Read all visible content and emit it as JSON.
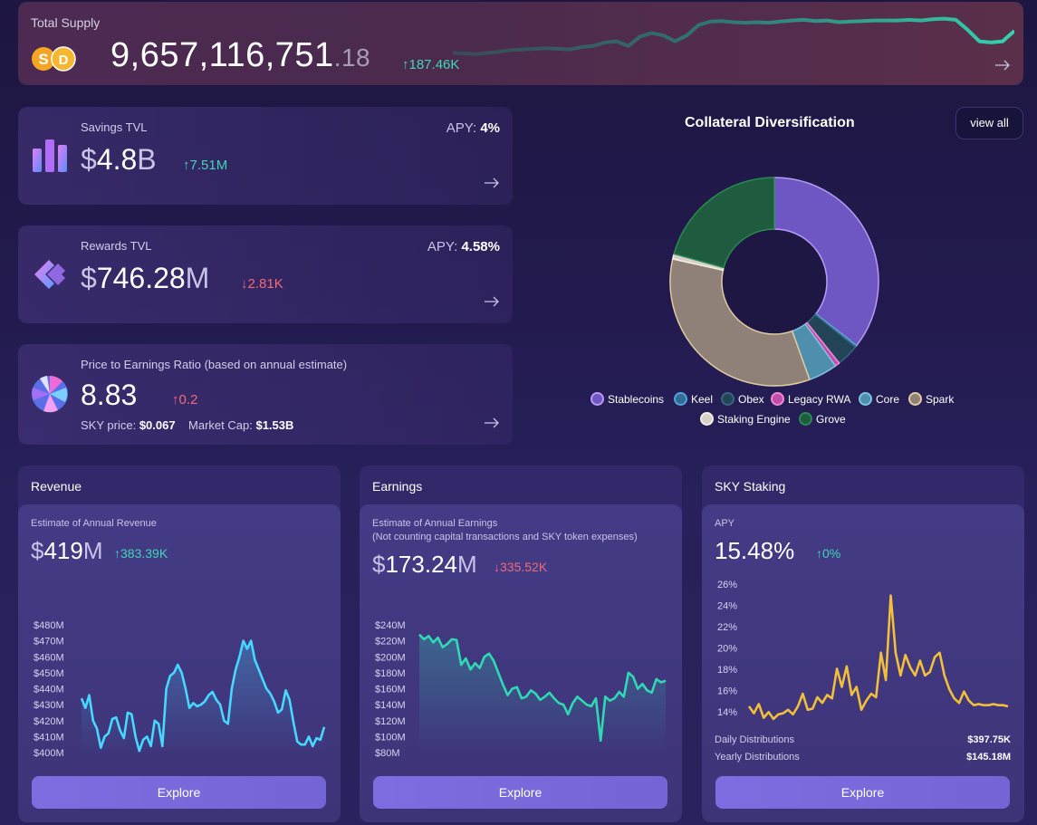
{
  "total_supply": {
    "label": "Total Supply",
    "value_main": "9,657,116,751",
    "value_decimal": ".18",
    "change": "↑187.46K",
    "trend": [
      0.4,
      0.39,
      0.38,
      0.4,
      0.42,
      0.45,
      0.46,
      0.47,
      0.48,
      0.47,
      0.46,
      0.5,
      0.52,
      0.58,
      0.6,
      0.52,
      0.68,
      0.74,
      0.7,
      0.6,
      0.7,
      0.88,
      0.94,
      0.95,
      0.93,
      0.92,
      0.93,
      0.92,
      0.94,
      0.96,
      0.97,
      0.95,
      0.96,
      0.93,
      0.94,
      0.95,
      0.96,
      0.96,
      0.96,
      0.97,
      0.96,
      0.98,
      0.99,
      0.97,
      0.8,
      0.6,
      0.58,
      0.6,
      0.78
    ]
  },
  "savings": {
    "title": "Savings TVL",
    "apy_label": "APY:",
    "apy_value": "4%",
    "currency": "$",
    "value": "4.8",
    "unit": "B",
    "change": "↑7.51M"
  },
  "rewards": {
    "title": "Rewards TVL",
    "apy_label": "APY:",
    "apy_value": "4.58%",
    "currency": "$",
    "value": "746.28",
    "unit": "M",
    "change": "↓2.81K"
  },
  "pe": {
    "title": "Price to Earnings Ratio (based on annual estimate)",
    "value": "8.83",
    "change": "↑0.2",
    "price_label": "SKY price:",
    "price_value": "$0.067",
    "mcap_label": "Market Cap:",
    "mcap_value": "$1.53B"
  },
  "collateral": {
    "title": "Collateral Diversification",
    "view_all": "view all",
    "chart_data": {
      "type": "pie",
      "categories": [
        "Stablecoins",
        "Keel",
        "Obex",
        "Legacy RWA",
        "Core",
        "Spark",
        "Staking Engine",
        "Grove"
      ],
      "values": [
        35.5,
        0.3,
        3.5,
        0.7,
        4.5,
        34.0,
        0.8,
        20.7
      ],
      "title": "Collateral Diversification"
    },
    "colors": {
      "fill": [
        "#6e57c2",
        "#2f6d96",
        "#234457",
        "#c34ca8",
        "#4f8fae",
        "#8f8078",
        "#d7d0c8",
        "#1f5b3e"
      ],
      "stroke": [
        "#b69cf5",
        "#56a3d8",
        "#35687e",
        "#ef8ad8",
        "#7fc2e0",
        "#e0cca0",
        "#f1eee8",
        "#2a8a50"
      ]
    }
  },
  "revenue": {
    "title": "Revenue",
    "subtitle": "Estimate of Annual Revenue",
    "currency": "$",
    "value": "419",
    "unit": "M",
    "change": "↑383.39K",
    "explore": "Explore",
    "chart_data": {
      "type": "area",
      "ylim": [
        400,
        480
      ],
      "ylabels": [
        "$480M",
        "$470M",
        "$460M",
        "$450M",
        "$440M",
        "$430M",
        "$420M",
        "$410M",
        "$400M"
      ],
      "values": [
        434,
        428,
        436,
        420,
        415,
        403,
        410,
        412,
        421,
        422,
        414,
        409,
        425,
        424,
        410,
        401,
        408,
        410,
        404,
        420,
        418,
        404,
        440,
        448,
        450,
        455,
        450,
        440,
        428,
        431,
        429,
        430,
        432,
        436,
        438,
        433,
        430,
        420,
        418,
        440,
        452,
        460,
        470,
        465,
        470,
        458,
        452,
        446,
        440,
        437,
        432,
        425,
        427,
        439,
        433,
        419,
        407,
        405,
        405,
        410,
        404,
        409,
        408,
        416
      ]
    }
  },
  "earnings": {
    "title": "Earnings",
    "subtitle_1": "Estimate of Annual Earnings",
    "subtitle_2": "(Not counting capital transactions and SKY token expenses)",
    "currency": "$",
    "value": "173.24",
    "unit": "M",
    "change": "↓335.52K",
    "explore": "Explore",
    "chart_data": {
      "type": "area",
      "ylim": [
        80,
        240
      ],
      "ylabels": [
        "$240M",
        "$220M",
        "$200M",
        "$180M",
        "$160M",
        "$140M",
        "$120M",
        "$100M",
        "$80M"
      ],
      "values": [
        228,
        222,
        226,
        218,
        224,
        212,
        216,
        222,
        221,
        190,
        198,
        184,
        192,
        186,
        200,
        204,
        195,
        180,
        165,
        152,
        160,
        162,
        148,
        150,
        158,
        154,
        146,
        150,
        155,
        148,
        142,
        140,
        128,
        142,
        150,
        145,
        140,
        138,
        148,
        95,
        150,
        145,
        148,
        156,
        150,
        180,
        175,
        160,
        166,
        158,
        155,
        172,
        168,
        170
      ]
    }
  },
  "staking": {
    "title": "SKY Staking",
    "subtitle": "APY",
    "value": "15.48%",
    "change": "↑0%",
    "explore": "Explore",
    "daily_label": "Daily Distributions",
    "daily_value": "$397.75K",
    "yearly_label": "Yearly Distributions",
    "yearly_value": "$145.18M",
    "chart_data": {
      "type": "line",
      "ylim": [
        13,
        26
      ],
      "ylabels": [
        "26%",
        "24%",
        "22%",
        "20%",
        "18%",
        "16%",
        "14%"
      ],
      "values": [
        15.3,
        14.7,
        15.5,
        14.3,
        14.8,
        14.2,
        14.6,
        14.7,
        15.0,
        14.6,
        15.3,
        16.4,
        15.0,
        15.1,
        16.1,
        15.6,
        16.3,
        16.0,
        18.6,
        17.0,
        18.8,
        16.3,
        17.0,
        15.0,
        15.8,
        16.4,
        16.1,
        20.0,
        17.6,
        25.0,
        20.0,
        18.0,
        19.8,
        18.7,
        18.0,
        19.3,
        18.0,
        18.3,
        19.6,
        20.0,
        18.0,
        16.8,
        16.0,
        15.6,
        16.6,
        15.8,
        15.4,
        15.5,
        15.4,
        15.4,
        15.5,
        15.4,
        15.4,
        15.3
      ]
    }
  }
}
